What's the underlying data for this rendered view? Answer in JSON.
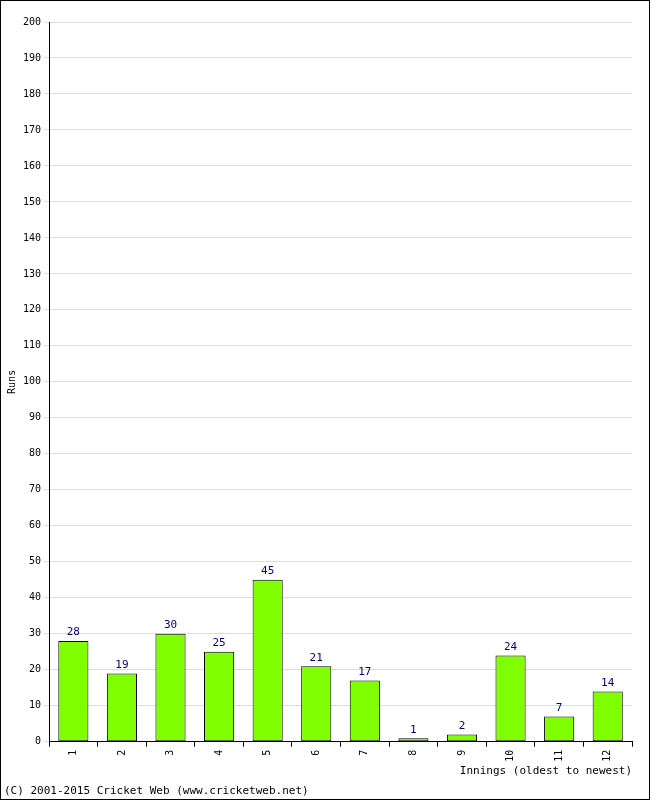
{
  "chart_data": {
    "type": "bar",
    "categories": [
      "1",
      "2",
      "3",
      "4",
      "5",
      "6",
      "7",
      "8",
      "9",
      "10",
      "11",
      "12"
    ],
    "values": [
      28,
      19,
      30,
      25,
      45,
      21,
      17,
      1,
      2,
      24,
      7,
      14
    ],
    "color": "#80ff00",
    "xlabel": "Innings (oldest to newest)",
    "ylabel": "Runs",
    "annotation": "(C) 2001-2015 Cricket Web (www.cricketweb.net)",
    "ylim": [
      0,
      200
    ],
    "yticks": [
      0,
      10,
      20,
      30,
      40,
      50,
      60,
      70,
      80,
      90,
      100,
      110,
      120,
      130,
      140,
      150,
      160,
      170,
      180,
      190,
      200
    ],
    "grid": true,
    "data_labels": true
  }
}
